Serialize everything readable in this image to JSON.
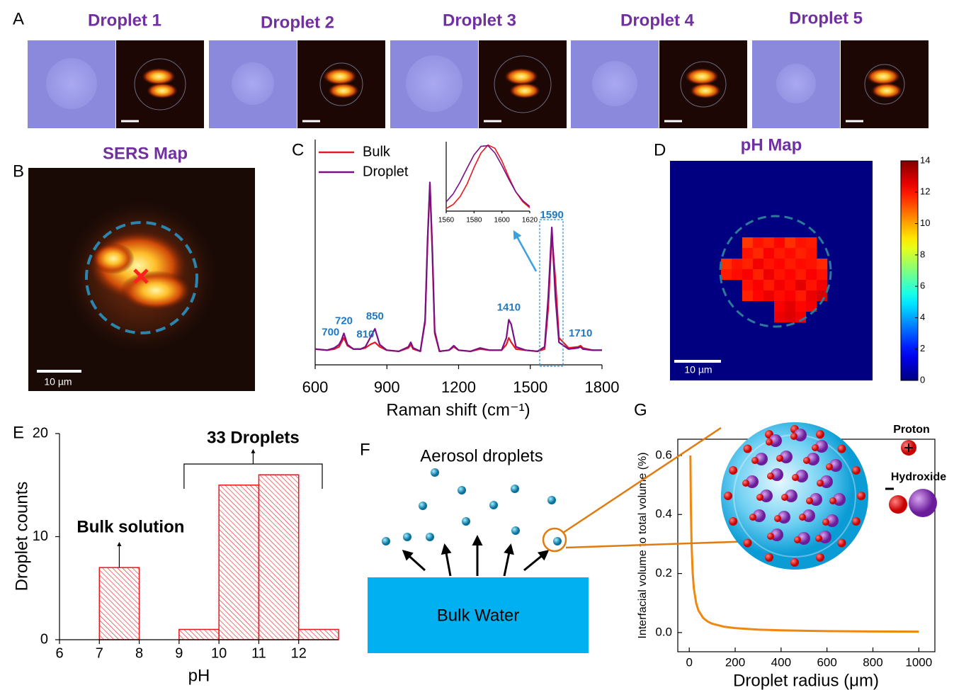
{
  "panel_labels": [
    "A",
    "B",
    "C",
    "D",
    "E",
    "F",
    "G"
  ],
  "droplet_titles": [
    "Droplet 1",
    "Droplet 2",
    "Droplet 3",
    "Droplet 4",
    "Droplet 5"
  ],
  "sers_map": {
    "title": "SERS Map",
    "scale_bar": "10 µm"
  },
  "aerosol_diagram": {
    "title": "Aerosol droplets",
    "reservoir": "Bulk Water"
  },
  "schematic": {
    "proton": "Proton",
    "hydroxide": "Hydroxide"
  },
  "chart_data": [
    {
      "type": "histogram",
      "bins": [
        7,
        8,
        9,
        10,
        11,
        12,
        13
      ],
      "values": [
        7,
        0,
        1,
        15,
        16,
        1
      ],
      "color": "#e8191f",
      "xlim": [
        6,
        13
      ],
      "xticks": [
        6,
        7,
        8,
        9,
        10,
        11,
        12
      ],
      "ylim": [
        0,
        20
      ],
      "yticks": [
        0,
        10,
        20
      ],
      "x_label": "pH",
      "y_label": "Droplet counts",
      "annotations": [
        "Bulk solution",
        "33 Droplets"
      ]
    },
    {
      "type": "line",
      "x": [
        600,
        650,
        680,
        700,
        710,
        720,
        735,
        760,
        790,
        810,
        830,
        850,
        870,
        900,
        950,
        990,
        1000,
        1010,
        1040,
        1060,
        1070,
        1080,
        1090,
        1100,
        1120,
        1160,
        1180,
        1200,
        1250,
        1290,
        1330,
        1380,
        1400,
        1410,
        1420,
        1440,
        1480,
        1530,
        1560,
        1575,
        1590,
        1605,
        1620,
        1660,
        1700,
        1710,
        1720,
        1760,
        1800
      ],
      "series": [
        {
          "name": "Bulk",
          "color": "#e8191f",
          "values": [
            7,
            6.5,
            7,
            8,
            10,
            12,
            8.5,
            7,
            7,
            7.5,
            9,
            10,
            8,
            6.5,
            6,
            7.5,
            9,
            7,
            6,
            19,
            54,
            80,
            50,
            14,
            6,
            6.5,
            8,
            6.5,
            6,
            7,
            6.5,
            6.5,
            9,
            12,
            10,
            7,
            6.5,
            6,
            7,
            25,
            58,
            38,
            12,
            7.5,
            8,
            8.5,
            7.5,
            6.5,
            6.5
          ]
        },
        {
          "name": "Droplet",
          "color": "#7b0f86",
          "values": [
            7,
            6.5,
            7.5,
            9,
            11,
            14,
            9,
            7,
            7,
            8,
            12,
            16,
            9,
            6.5,
            6,
            8,
            10,
            7.5,
            6,
            20,
            55,
            81,
            52,
            15,
            6,
            6.5,
            8.5,
            6.5,
            6,
            7.5,
            6.5,
            6.5,
            12,
            20,
            18,
            8,
            6.5,
            6,
            8,
            30,
            61,
            30,
            10,
            7,
            7.5,
            8,
            7,
            6.5,
            6.5
          ]
        }
      ],
      "xlim": [
        600,
        1800
      ],
      "xticks": [
        600,
        900,
        1200,
        1500,
        1800
      ],
      "ylim": [
        0,
        100
      ],
      "x_label": "Raman shift (cm⁻¹)",
      "peak_labels": [
        700,
        720,
        810,
        850,
        1410,
        1590,
        1710
      ],
      "legend": "upper left"
    },
    {
      "type": "line",
      "x": [
        1560,
        1565,
        1570,
        1575,
        1580,
        1585,
        1590,
        1595,
        1600,
        1605,
        1610,
        1615,
        1620
      ],
      "series": [
        {
          "color": "#e8191f",
          "values": [
            0.04,
            0.1,
            0.22,
            0.41,
            0.66,
            0.88,
            1.0,
            0.95,
            0.76,
            0.51,
            0.29,
            0.14,
            0.05
          ]
        },
        {
          "color": "#7b0f86",
          "values": [
            0.14,
            0.26,
            0.44,
            0.65,
            0.85,
            0.98,
            0.99,
            0.88,
            0.69,
            0.48,
            0.29,
            0.16,
            0.07
          ]
        }
      ],
      "xlim": [
        1560,
        1620
      ],
      "xticks": [
        1560,
        1580,
        1600,
        1620
      ],
      "ylim": [
        0,
        1.05
      ]
    },
    {
      "type": "heatmap",
      "title": "pH Map",
      "scale_bar": "10 µm",
      "background": 0,
      "values": [
        [
          0,
          0,
          11.5,
          12,
          11.8,
          12.2,
          11.6,
          12,
          11.9,
          0
        ],
        [
          0,
          0,
          12,
          11.7,
          12.3,
          11.9,
          12.1,
          11.8,
          12,
          0
        ],
        [
          11.6,
          12,
          11.8,
          12.4,
          12,
          12.2,
          11.9,
          12.1,
          12,
          11.7
        ],
        [
          11.9,
          12.1,
          12.3,
          11.8,
          12.5,
          12,
          12.2,
          11.9,
          12.3,
          12
        ],
        [
          0,
          0,
          12,
          12.3,
          11.9,
          12.4,
          12.1,
          12.6,
          12,
          12.4
        ],
        [
          0,
          0,
          11.8,
          12.2,
          12.5,
          12.1,
          12.3,
          11.9,
          12.5,
          12.8
        ],
        [
          0,
          0,
          0,
          0,
          0,
          12.3,
          12.6,
          12.2,
          12.4,
          0
        ],
        [
          0,
          0,
          0,
          0,
          0,
          12.5,
          12.7,
          12.4,
          0,
          0
        ]
      ],
      "clim": [
        0,
        14
      ],
      "cticks": [
        0,
        2,
        4,
        6,
        8,
        10,
        12,
        14
      ]
    },
    {
      "type": "line",
      "x": [
        5,
        7,
        10,
        15,
        20,
        30,
        40,
        60,
        80,
        100,
        150,
        200,
        300,
        400,
        500,
        600,
        700,
        800,
        900,
        1000
      ],
      "series": [
        {
          "color": "#f0870f",
          "values": [
            0.6,
            0.429,
            0.3,
            0.2,
            0.15,
            0.1,
            0.075,
            0.05,
            0.0375,
            0.03,
            0.02,
            0.015,
            0.01,
            0.0075,
            0.006,
            0.005,
            0.0043,
            0.00375,
            0.0033,
            0.003
          ]
        }
      ],
      "xlim": [
        -50,
        1070
      ],
      "xticks": [
        0,
        200,
        400,
        600,
        800,
        1000
      ],
      "ylim": [
        -0.065,
        0.655
      ],
      "yticks": [
        {
          "value": 0,
          "label": "0.0"
        },
        0.2,
        0.4,
        0.6
      ],
      "x_label": "Droplet radius (μm)",
      "y_label": "Interfacial volume to total volume (%)"
    }
  ]
}
